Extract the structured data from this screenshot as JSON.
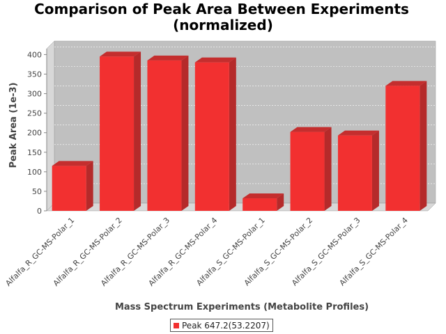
{
  "chart_data": {
    "type": "bar",
    "title": "Comparison of Peak Area Between Experiments",
    "subtitle": "(normalized)",
    "xlabel": "Mass Spectrum Experiments (Metabolite Profiles)",
    "ylabel": "Peak Area (1e-3)",
    "ylim": [
      0,
      415
    ],
    "yticks": [
      0,
      50,
      100,
      150,
      200,
      250,
      300,
      350,
      400
    ],
    "categories": [
      "Alfalfa_R_GC-MS-Polar_1",
      "Alfalfa_R_GC-MS-Polar_2",
      "Alfalfa_R_GC-MS-Polar_3",
      "Alfalfa_R_GC-MS-Polar_4",
      "Alfalfa_S_GC-MS-Polar_1",
      "Alfalfa_S_GC-MS-Polar_2",
      "Alfalfa_S_GC-MS-Polar_3",
      "Alfalfa_S_GC-MS-Polar_4"
    ],
    "series": [
      {
        "name": "Peak 647.2(53.2207)",
        "values": [
          115,
          395,
          385,
          380,
          32,
          202,
          193,
          320
        ]
      }
    ],
    "grid": true,
    "legend_position": "bottom",
    "colors": {
      "bar": "#f23030",
      "bar_side": "#b52a2a",
      "bar_top": "#c42e2e",
      "plot_back": "#c0c0c0",
      "plot_wall": "#d8d8d8"
    }
  }
}
